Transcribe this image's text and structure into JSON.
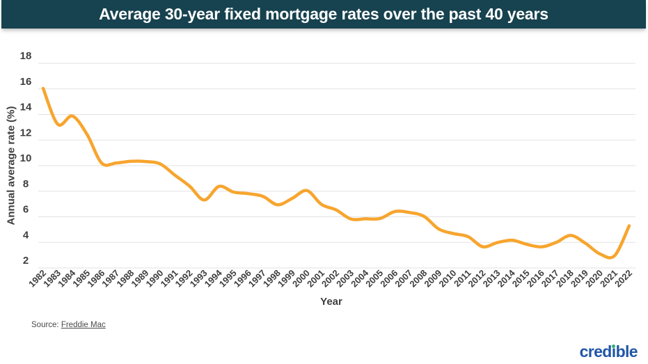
{
  "colors": {
    "header_bg": "#17424F",
    "title_text": "#FFFFFF",
    "line": "#F7A52E",
    "grid": "#E2E2E2",
    "text": "#3E3E3E",
    "source_text": "#4A4A4A",
    "logo_blue": "#2056A6",
    "logo_green": "#35AD70"
  },
  "chart_data": {
    "type": "line",
    "title": "Average 30-year fixed mortgage rates over the past 40 years",
    "xlabel": "Year",
    "ylabel": "Annual average rate (%)",
    "categories": [
      "1982",
      "1983",
      "1984",
      "1985",
      "1986",
      "1987",
      "1988",
      "1989",
      "1990",
      "1991",
      "1992",
      "1993",
      "1994",
      "1995",
      "1996",
      "1997",
      "1998",
      "1999",
      "2000",
      "2001",
      "2002",
      "2003",
      "2004",
      "2005",
      "2006",
      "2007",
      "2008",
      "2009",
      "2010",
      "2011",
      "2012",
      "2013",
      "2014",
      "2015",
      "2016",
      "2017",
      "2018",
      "2019",
      "2020",
      "2021",
      "2022"
    ],
    "values": [
      16.04,
      13.24,
      13.88,
      12.43,
      10.19,
      10.21,
      10.34,
      10.32,
      10.13,
      9.25,
      8.39,
      7.31,
      8.38,
      7.93,
      7.81,
      7.6,
      6.94,
      7.44,
      8.05,
      6.97,
      6.54,
      5.83,
      5.84,
      5.87,
      6.41,
      6.34,
      6.03,
      5.04,
      4.69,
      4.45,
      3.66,
      3.98,
      4.17,
      3.85,
      3.65,
      3.99,
      4.54,
      3.94,
      3.1,
      2.96,
      5.3
    ],
    "series_name": "30-year fixed mortgage rate",
    "ylim": [
      2,
      18
    ],
    "yticks": [
      2,
      4,
      6,
      8,
      10,
      12,
      14,
      16,
      18
    ],
    "grid": "horizontal",
    "legend": "none"
  },
  "footer": {
    "source_prefix": "Source: ",
    "source_link": "Freddie Mac",
    "logo": {
      "text": "credible",
      "pre": "cred",
      "i": "i",
      "post": "ble"
    }
  }
}
